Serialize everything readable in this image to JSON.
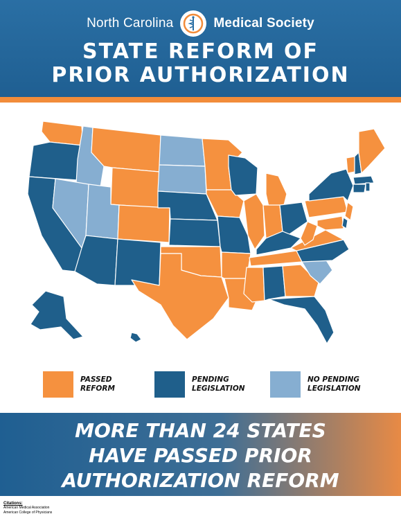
{
  "header": {
    "org_left": "North Carolina",
    "org_right": "Medical Society",
    "title_line1": "STATE REFORM OF",
    "title_line2": "PRIOR AUTHORIZATION"
  },
  "colors": {
    "passed": "#f5913f",
    "pending": "#1f5f8b",
    "no_pending": "#86aed1",
    "header_blue": "#2a6fa4",
    "accent_orange": "#f28c3a"
  },
  "legend": [
    {
      "key": "passed",
      "label": "PASSED\nREFORM"
    },
    {
      "key": "pending",
      "label": "PENDING\nLEGISLATION"
    },
    {
      "key": "no_pending",
      "label": "NO PENDING\nLEGISLATION"
    }
  ],
  "footer": {
    "line1": "MORE THAN 24 STATES",
    "line2": "HAVE PASSED  PRIOR",
    "line3": "AUTHORIZATION REFORM"
  },
  "citations": {
    "heading": "Citations:",
    "sources": [
      "American Medical Association",
      "American College of Physicians"
    ]
  },
  "icons": {
    "logo": "caduceus-icon"
  }
}
